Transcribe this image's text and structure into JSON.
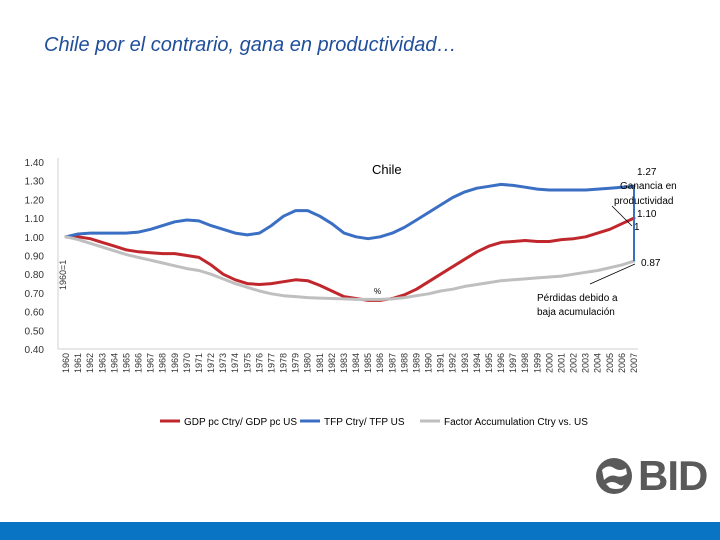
{
  "slide": {
    "title": "Chile por el contrario, gana en productividad…",
    "logo_text": "BID",
    "footer_color": "#0a74c4"
  },
  "chart_data": {
    "type": "line",
    "title": "Chile",
    "ylabel": "1960=1",
    "ylim": [
      0.4,
      1.4
    ],
    "yticks": [
      "0.40",
      "0.50",
      "0.60",
      "0.70",
      "0.80",
      "0.90",
      "1.00",
      "1.10",
      "1.20",
      "1.30",
      "1.40"
    ],
    "categories": [
      "1960",
      "1961",
      "1962",
      "1963",
      "1964",
      "1965",
      "1966",
      "1967",
      "1968",
      "1969",
      "1970",
      "1971",
      "1972",
      "1973",
      "1974",
      "1975",
      "1976",
      "1977",
      "1978",
      "1979",
      "1980",
      "1981",
      "1982",
      "1983",
      "1984",
      "1985",
      "1986",
      "1987",
      "1988",
      "1989",
      "1990",
      "1991",
      "1992",
      "1993",
      "1994",
      "1995",
      "1996",
      "1997",
      "1998",
      "1999",
      "2000",
      "2001",
      "2002",
      "2003",
      "2004",
      "2005",
      "2006",
      "2007"
    ],
    "series": [
      {
        "name": "GDP pc Ctry/ GDP pc US",
        "color": "#c0272d",
        "values": [
          1.0,
          1.0,
          0.99,
          0.97,
          0.95,
          0.93,
          0.92,
          0.915,
          0.91,
          0.91,
          0.9,
          0.89,
          0.85,
          0.8,
          0.77,
          0.75,
          0.745,
          0.75,
          0.76,
          0.77,
          0.765,
          0.74,
          0.71,
          0.68,
          0.67,
          0.66,
          0.66,
          0.67,
          0.69,
          0.72,
          0.76,
          0.8,
          0.84,
          0.88,
          0.92,
          0.95,
          0.97,
          0.975,
          0.98,
          0.975,
          0.975,
          0.985,
          0.99,
          1.0,
          1.02,
          1.04,
          1.07,
          1.1
        ]
      },
      {
        "name": "TFP Ctry/ TFP US",
        "color": "#3b6fc4",
        "values": [
          1.0,
          1.015,
          1.02,
          1.02,
          1.02,
          1.02,
          1.025,
          1.04,
          1.06,
          1.08,
          1.09,
          1.085,
          1.06,
          1.04,
          1.02,
          1.01,
          1.02,
          1.06,
          1.11,
          1.14,
          1.14,
          1.11,
          1.07,
          1.02,
          1.0,
          0.99,
          1.0,
          1.02,
          1.05,
          1.09,
          1.13,
          1.17,
          1.21,
          1.24,
          1.26,
          1.27,
          1.28,
          1.275,
          1.265,
          1.255,
          1.25,
          1.25,
          1.25,
          1.25,
          1.255,
          1.26,
          1.265,
          1.27
        ]
      },
      {
        "name": "Factor Accumulation Ctry vs. US",
        "color": "#bfbfbf",
        "values": [
          1.0,
          0.985,
          0.965,
          0.945,
          0.925,
          0.905,
          0.89,
          0.875,
          0.86,
          0.845,
          0.83,
          0.82,
          0.8,
          0.775,
          0.75,
          0.73,
          0.71,
          0.695,
          0.685,
          0.68,
          0.675,
          0.672,
          0.67,
          0.668,
          0.665,
          0.665,
          0.665,
          0.668,
          0.675,
          0.685,
          0.695,
          0.71,
          0.72,
          0.735,
          0.745,
          0.755,
          0.765,
          0.77,
          0.775,
          0.78,
          0.785,
          0.79,
          0.8,
          0.81,
          0.82,
          0.835,
          0.85,
          0.87
        ]
      }
    ],
    "annotations": [
      {
        "id": "top-value",
        "text": "1.27"
      },
      {
        "id": "gain-line1",
        "text": "Ganancia en"
      },
      {
        "id": "gain-line2",
        "text": "productividad"
      },
      {
        "id": "gain-value",
        "text": "1.10"
      },
      {
        "id": "gain-one",
        "text": "1"
      },
      {
        "id": "loss-value",
        "text": "0.87"
      },
      {
        "id": "loss-line1",
        "text": "Pérdidas debido a"
      },
      {
        "id": "loss-line2",
        "text": "baja acumulación"
      },
      {
        "id": "small-mark",
        "text": "%"
      }
    ]
  }
}
